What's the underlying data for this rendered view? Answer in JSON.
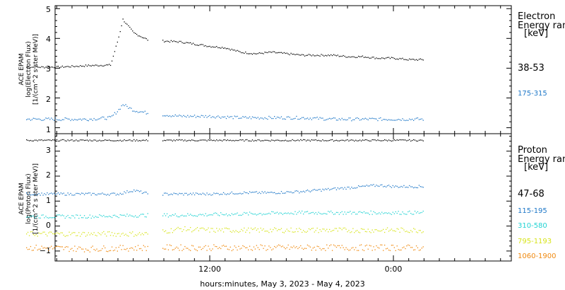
{
  "colors": {
    "black": "#000000",
    "blue": "#1f78c8",
    "cyan": "#22d3d3",
    "yellow": "#d7e41a",
    "orange": "#f08a10"
  },
  "chart_data": [
    {
      "type": "scatter",
      "panel": "electron",
      "ylabel": [
        "ACE EPAM",
        "log(Electron Flux)",
        "[1/(cm^2 s ster MeV)]"
      ],
      "ylim": [
        0.8,
        5.1
      ],
      "yticks": [
        "1",
        "2",
        "3",
        "4",
        "5"
      ],
      "legend": {
        "title": [
          "Electron",
          "Energy ran",
          "[keV]"
        ],
        "placement": "right"
      },
      "series": [
        {
          "name": "38-53",
          "color": "#000000",
          "x": [
            0,
            2,
            4,
            5.5,
            6,
            6.3,
            7,
            8,
            10,
            12,
            13,
            14,
            15,
            16,
            17,
            18,
            19,
            20,
            21,
            22,
            23,
            24,
            25,
            26
          ],
          "y": [
            3.05,
            3.05,
            3.1,
            3.12,
            4.0,
            4.65,
            4.2,
            3.95,
            3.9,
            3.75,
            3.7,
            3.55,
            3.5,
            3.55,
            3.5,
            3.45,
            3.45,
            3.45,
            3.4,
            3.4,
            3.35,
            3.35,
            3.3,
            3.3
          ]
        },
        {
          "name": "175-315",
          "color": "#1f78c8",
          "x": [
            0,
            2,
            4,
            5.5,
            6,
            6.3,
            7,
            8,
            10,
            12,
            14,
            16,
            18,
            20,
            22,
            24,
            26
          ],
          "y": [
            1.3,
            1.3,
            1.3,
            1.35,
            1.6,
            1.8,
            1.6,
            1.5,
            1.4,
            1.4,
            1.35,
            1.35,
            1.35,
            1.3,
            1.3,
            1.3,
            1.3
          ]
        }
      ]
    },
    {
      "type": "scatter",
      "panel": "proton",
      "ylabel": [
        "ACE EPAM",
        "log(Proton Flux)",
        "[1/(cm^2 s ster MeV)]"
      ],
      "ylim": [
        -1.4,
        3.7
      ],
      "yticks": [
        "3",
        "2",
        "1",
        "0",
        "−1"
      ],
      "xtick_labels": [
        "12:00",
        "0:00"
      ],
      "xlabel": "hours:minutes, May  3, 2023 - May  4, 2023",
      "legend": {
        "title": [
          "Proton",
          "Energy ran",
          "[keV]"
        ],
        "placement": "right"
      },
      "series": [
        {
          "name": "47-68",
          "color": "#000000",
          "x": [
            0,
            4,
            8,
            10,
            14,
            18,
            22,
            26
          ],
          "y": [
            3.45,
            3.45,
            3.45,
            3.45,
            3.45,
            3.45,
            3.45,
            3.45
          ]
        },
        {
          "name": "115-195",
          "color": "#1f78c8",
          "x": [
            0,
            2,
            4,
            6,
            7,
            8,
            10,
            12,
            14,
            16,
            18,
            20,
            21,
            22,
            23,
            24,
            26
          ],
          "y": [
            1.3,
            1.3,
            1.3,
            1.3,
            1.45,
            1.3,
            1.3,
            1.3,
            1.35,
            1.35,
            1.4,
            1.5,
            1.55,
            1.6,
            1.65,
            1.6,
            1.6
          ]
        },
        {
          "name": "310-580",
          "color": "#22d3d3",
          "x": [
            0,
            4,
            8,
            10,
            14,
            18,
            22,
            26
          ],
          "y": [
            0.4,
            0.4,
            0.45,
            0.45,
            0.5,
            0.55,
            0.55,
            0.55
          ]
        },
        {
          "name": "795-1193",
          "color": "#d7e41a",
          "x": [
            0,
            4,
            8,
            10,
            12,
            14,
            18,
            22,
            26
          ],
          "y": [
            -0.3,
            -0.3,
            -0.3,
            -0.1,
            -0.15,
            -0.15,
            -0.15,
            -0.15,
            -0.15
          ]
        },
        {
          "name": "1060-1900",
          "color": "#f08a10",
          "x": [
            0,
            4,
            8,
            10,
            14,
            18,
            22,
            26
          ],
          "y": [
            -0.85,
            -0.9,
            -0.85,
            -0.85,
            -0.85,
            -0.85,
            -0.85,
            -0.85
          ]
        }
      ]
    }
  ]
}
